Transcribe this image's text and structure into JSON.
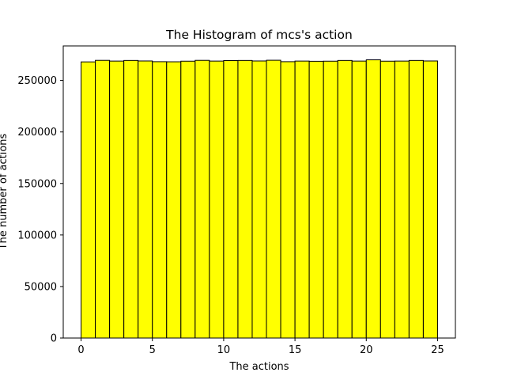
{
  "chart_data": {
    "type": "bar",
    "title": "The Histogram of mcs's action",
    "xlabel": "The actions",
    "ylabel": "The number of actions",
    "bin_edges": [
      0,
      1,
      2,
      3,
      4,
      5,
      6,
      7,
      8,
      9,
      10,
      11,
      12,
      13,
      14,
      15,
      16,
      17,
      18,
      19,
      20,
      21,
      22,
      23,
      24,
      25
    ],
    "values": [
      268000,
      269500,
      268800,
      269400,
      268900,
      268200,
      268100,
      268700,
      269500,
      268800,
      269300,
      269400,
      268900,
      269600,
      268200,
      268800,
      268600,
      268700,
      269400,
      268800,
      270000,
      268700,
      268800,
      269400,
      268900
    ],
    "xlim": [
      -1.25,
      26.25
    ],
    "ylim": [
      0,
      283500
    ],
    "xticks": [
      0,
      5,
      10,
      15,
      20,
      25
    ],
    "yticks": [
      0,
      50000,
      100000,
      150000,
      200000,
      250000
    ],
    "xtick_labels": [
      "0",
      "5",
      "10",
      "15",
      "20",
      "25"
    ],
    "ytick_labels": [
      "0",
      "50000",
      "100000",
      "150000",
      "200000",
      "250000"
    ],
    "bar_color": "#ffff00",
    "edge_color": "#000000",
    "grid": false,
    "legend": "none"
  }
}
